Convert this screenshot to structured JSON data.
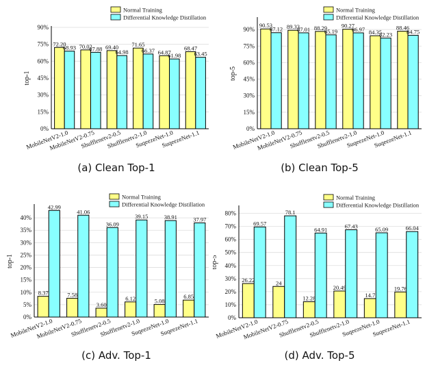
{
  "legend": {
    "normal": "Normal Training",
    "dkd": "Differential Knowledge Distillation"
  },
  "colors": {
    "normal": "#ffff88",
    "dkd": "#88ffff",
    "stroke": "#000000"
  },
  "captions": [
    "(a) Clean Top-1",
    "(b) Clean Top-5",
    "(c) Adv. Top-1",
    "(d) Adv. Top-5"
  ],
  "chart_data": [
    {
      "type": "bar",
      "ylabel": "top-1",
      "ylim": [
        0,
        90
      ],
      "yticks": [
        0,
        15,
        30,
        45,
        60,
        75,
        90
      ],
      "categories": [
        "MobileNetV2-1.0",
        "MobileNetV2-0.75",
        "Shufflenetv2-0.5",
        "Shufflenetv2-1.0",
        "SuqeezeNet-1.0",
        "SuqeezeNet-1.1"
      ],
      "series": [
        {
          "name": "Normal Training",
          "values": [
            72.2,
            70.02,
            69.4,
            71.65,
            64.87,
            68.47
          ],
          "labels": [
            "72.20",
            "70.02",
            "69.40",
            "71.65",
            "64.87",
            "68.47"
          ]
        },
        {
          "name": "Differential Knowledge Distillation",
          "values": [
            68.93,
            67.88,
            64.98,
            66.37,
            61.98,
            63.45
          ],
          "labels": [
            "68.93",
            "67.88",
            "64.98",
            "66.37",
            "61.98",
            "63.45"
          ]
        }
      ]
    },
    {
      "type": "bar",
      "ylabel": "top-5",
      "ylim": [
        0,
        100
      ],
      "yticks": [
        0,
        15,
        30,
        45,
        60,
        75,
        90
      ],
      "categories": [
        "MobileNetV2-1.0",
        "MobileNetV2-0.75",
        "Shufflenetv2-0.5",
        "Shufflenetv2-1.0",
        "SuqeezeNet-1.0",
        "SuqeezeNet-1.1"
      ],
      "series": [
        {
          "name": "Normal Training",
          "values": [
            90.53,
            89.33,
            88.29,
            90.27,
            84.35,
            88.46
          ],
          "labels": [
            "90.53",
            "89.33",
            "88.29",
            "90.27",
            "84.35",
            "88.46"
          ]
        },
        {
          "name": "Differential Knowledge Distillation",
          "values": [
            87.12,
            87.01,
            85.19,
            86.97,
            82.23,
            84.75
          ],
          "labels": [
            "87.12",
            "87.01",
            "85.19",
            "86.97",
            "82.23",
            "84.75"
          ]
        }
      ]
    },
    {
      "type": "bar",
      "ylabel": "top-1",
      "ylim": [
        0,
        45
      ],
      "yticks": [
        0,
        5,
        10,
        15,
        20,
        25,
        30,
        35,
        40
      ],
      "categories": [
        "MobileNetV2-1.0",
        "MobileNetV2-0.75",
        "Shufflenetv2-0.5",
        "Shufflenetv2-1.0",
        "SuqeezeNet-1.0",
        "SuqeezeNet-1.1"
      ],
      "series": [
        {
          "name": "Normal Training",
          "values": [
            8.37,
            7.58,
            3.6,
            6.12,
            5.08,
            6.85
          ],
          "labels": [
            "8.37",
            "7.58",
            "3.60",
            "6.12",
            "5.08",
            "6.85"
          ]
        },
        {
          "name": "Differential Knowledge Distillation",
          "values": [
            42.99,
            41.06,
            36.09,
            39.15,
            38.91,
            37.97
          ],
          "labels": [
            "42.99",
            "41.06",
            "36.09",
            "39.15",
            "38.91",
            "37.97"
          ]
        }
      ]
    },
    {
      "type": "bar",
      "ylabel": "top-5",
      "ylim": [
        0,
        85
      ],
      "yticks": [
        0,
        10,
        20,
        30,
        40,
        50,
        60,
        70,
        80
      ],
      "categories": [
        "MobileNetV2-1.0",
        "MobileNetV2-0.75",
        "Shufflenetv2-0.5",
        "Shufflenetv2-1.0",
        "SuqeezeNet-1.0",
        "SuqeezeNet-1.1"
      ],
      "series": [
        {
          "name": "Normal Training",
          "values": [
            26.22,
            24,
            12.28,
            20.49,
            14.7,
            19.76
          ],
          "labels": [
            "26.22",
            "24",
            "12.28",
            "20.49",
            "14.7",
            "19.76"
          ]
        },
        {
          "name": "Differential Knowledge Distillation",
          "values": [
            69.57,
            78.1,
            64.91,
            67.43,
            65.09,
            66.04
          ],
          "labels": [
            "69.57",
            "78.1",
            "64.91",
            "67.43",
            "65.09",
            "66.04"
          ]
        }
      ]
    }
  ]
}
